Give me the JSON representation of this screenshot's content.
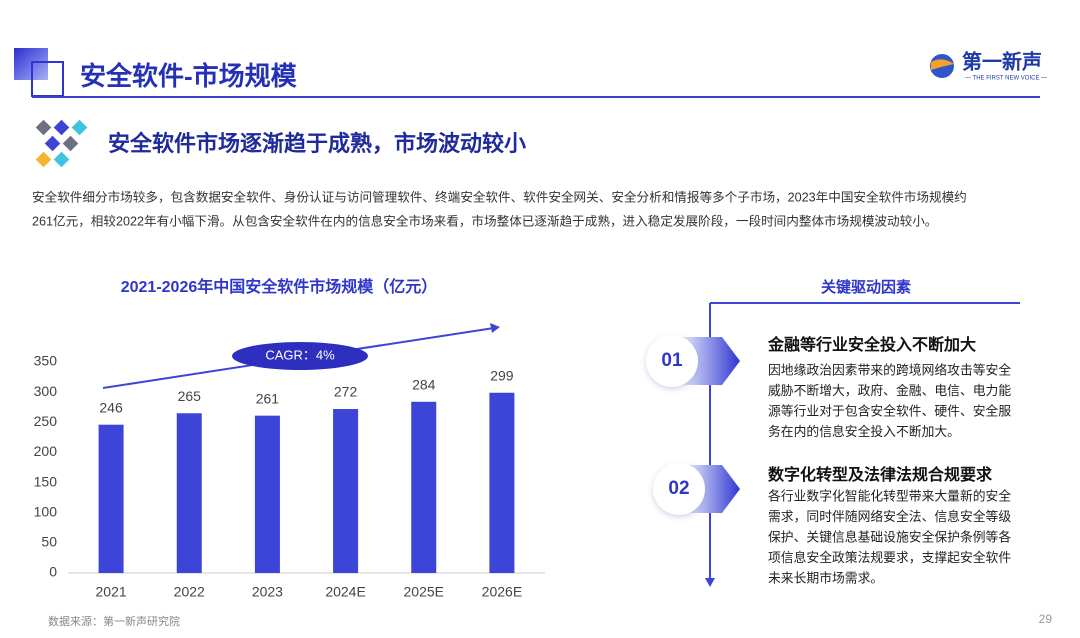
{
  "header": {
    "title": "安全软件-市场规模",
    "logo": "第一新声",
    "logo_subtitle": "— THE FIRST NEW VOICE —"
  },
  "section_title": "安全软件市场逐渐趋于成熟，市场波动较小",
  "paragraph": [
    "安全软件细分市场较多，包含数据安全软件、身份认证与访问管理软件、终端安全软件、软件安全网关、安全分析和情报等多个子市场，2023年中国安全软件市场规模约",
    "261亿元，相较2022年有小幅下滑。从包含安全软件在内的信息安全市场来看，市场整体已逐渐趋于成熟，进入稳定发展阶段，一段时间内整体市场规模波动较小。"
  ],
  "chart_data": {
    "type": "bar",
    "title": "2021-2026年中国安全软件市场规模（亿元）",
    "categories": [
      "2021",
      "2022",
      "2023",
      "2024E",
      "2025E",
      "2026E"
    ],
    "values": [
      246,
      265,
      261,
      272,
      284,
      299
    ],
    "color": "#3d45d8",
    "ylim": [
      0,
      350
    ],
    "yticks": [
      0,
      50,
      100,
      150,
      200,
      250,
      300,
      350
    ],
    "grid": false,
    "annotation": "CAGR：4%"
  },
  "drivers": {
    "title": "关键驱动因素",
    "items": [
      {
        "number": "01",
        "title": "金融等行业安全投入不断加大",
        "lines": [
          "因地缘政治因素带来的跨境网络攻击等安全",
          "威胁不断增大，政府、金融、电信、电力能",
          "源等行业对于包含安全软件、硬件、安全服",
          "务在内的信息安全投入不断加大。"
        ]
      },
      {
        "number": "02",
        "title": "数字化转型及法律法规合规要求",
        "lines": [
          "各行业数字化智能化转型带来大量新的安全",
          "需求，同时伴随网络安全法、信息安全等级",
          "保护、关键信息基础设施安全保护条例等各",
          "项信息安全政策法规要求，支撑起安全软件",
          "未来长期市场需求。"
        ]
      }
    ]
  },
  "source": "数据来源：第一新声研究院",
  "page_number": "29"
}
